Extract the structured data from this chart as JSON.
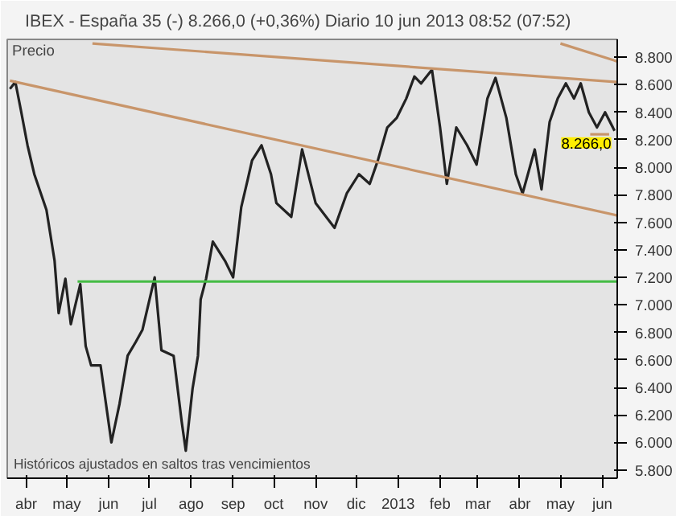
{
  "chart_data": {
    "type": "line",
    "title": "IBEX - España 35 (-)   8.266,0 (+0,36%)   Diario   10 jun 2013 08:52 (07:52)",
    "ylabel": "Precio",
    "annotations": [
      "Históricos ajustados en saltos tras vencimientos",
      {
        "text": "8.266,0",
        "x": "2013-06-10",
        "y": 8266
      }
    ],
    "x": [
      "2012-03-20",
      "2012-03-24",
      "2012-03-28",
      "2012-04-02",
      "2012-04-07",
      "2012-04-16",
      "2012-04-22",
      "2012-04-25",
      "2012-04-30",
      "2012-05-04",
      "2012-05-11",
      "2012-05-15",
      "2012-05-19",
      "2012-05-26",
      "2012-06-03",
      "2012-06-09",
      "2012-06-15",
      "2012-06-21",
      "2012-06-26",
      "2012-07-05",
      "2012-07-10",
      "2012-07-19",
      "2012-07-25",
      "2012-07-28",
      "2012-08-02",
      "2012-08-06",
      "2012-08-08",
      "2012-08-12",
      "2012-08-17",
      "2012-08-26",
      "2012-09-01",
      "2012-09-07",
      "2012-09-12",
      "2012-09-15",
      "2012-09-22",
      "2012-09-29",
      "2012-10-03",
      "2012-10-14",
      "2012-10-22",
      "2012-11-01",
      "2012-11-15",
      "2012-11-24",
      "2012-12-03",
      "2012-12-11",
      "2012-12-17",
      "2012-12-24",
      "2012-12-31",
      "2013-01-07",
      "2013-01-13",
      "2013-01-18",
      "2013-01-26",
      "2013-02-01",
      "2013-02-06",
      "2013-02-13",
      "2013-02-21",
      "2013-02-28",
      "2013-03-08",
      "2013-03-14",
      "2013-03-22",
      "2013-03-29",
      "2013-04-03",
      "2013-04-12",
      "2013-04-17",
      "2013-04-23",
      "2013-04-29",
      "2013-05-05",
      "2013-05-11",
      "2013-05-16",
      "2013-05-22",
      "2013-05-28",
      "2013-06-03",
      "2013-06-10"
    ],
    "series": [
      {
        "color": "#222222",
        "values": [
          8570,
          8620,
          8420,
          8160,
          7950,
          7690,
          7320,
          6940,
          7190,
          6860,
          7150,
          6700,
          6560,
          6560,
          6000,
          6280,
          6630,
          6730,
          6820,
          7200,
          6670,
          6630,
          6150,
          5940,
          6390,
          6630,
          7040,
          7190,
          7460,
          7320,
          7200,
          7710,
          7920,
          8050,
          8160,
          7950,
          7740,
          7640,
          8130,
          7740,
          7560,
          7810,
          7950,
          7880,
          8050,
          8290,
          8360,
          8500,
          8660,
          8610,
          8710,
          8290,
          7880,
          8290,
          8160,
          8020,
          8500,
          8650,
          8360,
          7950,
          7810,
          8130,
          7840,
          8330,
          8500,
          8610,
          8500,
          8610,
          8400,
          8290,
          8400,
          8266
        ]
      },
      {
        "color": "#c8956a",
        "x": [
          "2012-05-20",
          "2013-06-12"
        ],
        "values": [
          8900,
          8620
        ]
      },
      {
        "color": "#c8956a",
        "x": [
          "2013-05-01",
          "2013-06-12"
        ],
        "values": [
          8900,
          8770
        ]
      },
      {
        "color": "#c8956a",
        "x": [
          "2012-03-20",
          "2013-06-12"
        ],
        "values": [
          8630,
          7650
        ]
      },
      {
        "color": "#c8956a",
        "x": [
          "2013-05-23",
          "2013-06-06"
        ],
        "values": [
          8240,
          8240
        ]
      },
      {
        "color": "#44bb44",
        "x": [
          "2012-05-09",
          "2013-06-12"
        ],
        "values": [
          7170,
          7170
        ]
      }
    ],
    "xlim": [
      "2012-03-18",
      "2013-06-12"
    ],
    "xticks": [
      {
        "value": "2012-04-01",
        "label": "abr"
      },
      {
        "value": "2012-05-01",
        "label": "may"
      },
      {
        "value": "2012-06-01",
        "label": "jun"
      },
      {
        "value": "2012-07-01",
        "label": "jul"
      },
      {
        "value": "2012-08-01",
        "label": "ago"
      },
      {
        "value": "2012-09-01",
        "label": "sep"
      },
      {
        "value": "2012-10-01",
        "label": "oct"
      },
      {
        "value": "2012-11-01",
        "label": "nov"
      },
      {
        "value": "2012-12-01",
        "label": "dic"
      },
      {
        "value": "2013-01-01",
        "label": "2013"
      },
      {
        "value": "2013-02-01",
        "label": "feb"
      },
      {
        "value": "2013-03-01",
        "label": "mar"
      },
      {
        "value": "2013-04-01",
        "label": "abr"
      },
      {
        "value": "2013-05-01",
        "label": "may"
      },
      {
        "value": "2013-06-01",
        "label": "jun"
      }
    ],
    "ylim": [
      5740,
      8930
    ],
    "yticks": [
      {
        "value": 5800,
        "label": "5.800"
      },
      {
        "value": 6000,
        "label": "6.000"
      },
      {
        "value": 6200,
        "label": "6.200"
      },
      {
        "value": 6400,
        "label": "6.400"
      },
      {
        "value": 6600,
        "label": "6.600"
      },
      {
        "value": 6800,
        "label": "6.800"
      },
      {
        "value": 7000,
        "label": "7.000"
      },
      {
        "value": 7200,
        "label": "7.200"
      },
      {
        "value": 7400,
        "label": "7.400"
      },
      {
        "value": 7600,
        "label": "7.600"
      },
      {
        "value": 7800,
        "label": "7.800"
      },
      {
        "value": 8000,
        "label": "8.000"
      },
      {
        "value": 8200,
        "label": "8.200"
      },
      {
        "value": 8400,
        "label": "8.400"
      },
      {
        "value": 8600,
        "label": "8.600"
      },
      {
        "value": 8800,
        "label": "8.800"
      }
    ],
    "grid": false,
    "line_style": "solid"
  }
}
